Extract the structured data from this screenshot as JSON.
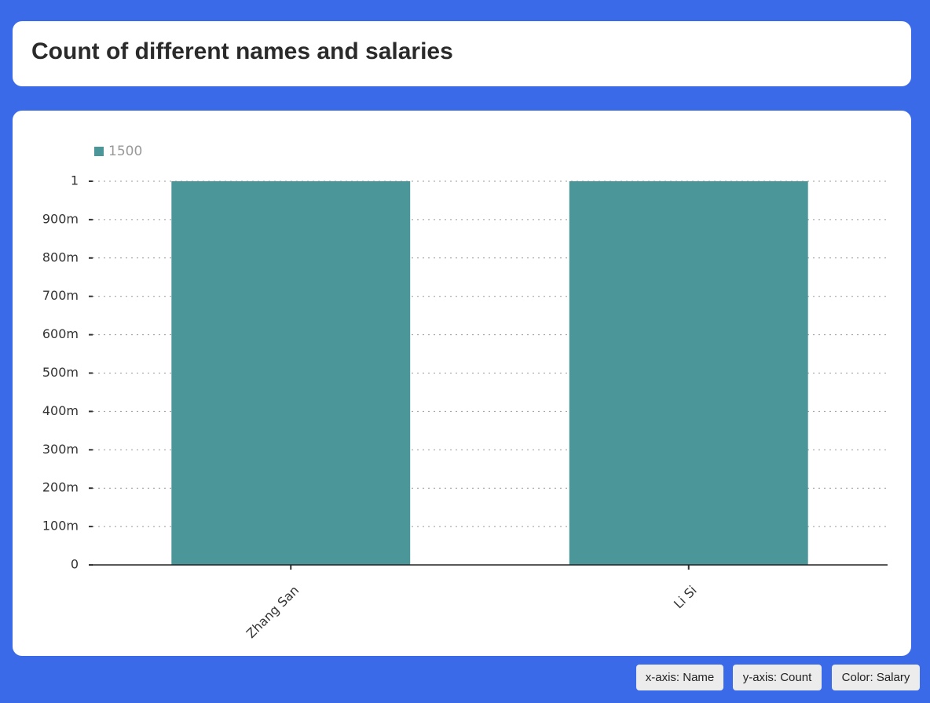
{
  "chart_data": {
    "type": "bar",
    "title": "Count of different names and salaries",
    "categories": [
      "Zhang San",
      "Li Si"
    ],
    "series": [
      {
        "name": "1500",
        "color": "#4a9699",
        "values": [
          1,
          1
        ]
      }
    ],
    "ylim": [
      0,
      1
    ],
    "yticks": [
      0,
      {
        "value": 0.1,
        "label": "100m"
      },
      {
        "value": 0.2,
        "label": "200m"
      },
      {
        "value": 0.3,
        "label": "300m"
      },
      {
        "value": 0.4,
        "label": "400m"
      },
      {
        "value": 0.5,
        "label": "500m"
      },
      {
        "value": 0.6,
        "label": "600m"
      },
      {
        "value": 0.7,
        "label": "700m"
      },
      {
        "value": 0.8,
        "label": "800m"
      },
      {
        "value": 0.9,
        "label": "900m"
      },
      1
    ],
    "grid": true,
    "legend": "top-left"
  },
  "controls": [
    "x-axis: Name",
    "y-axis: Count",
    "Color: Salary"
  ]
}
